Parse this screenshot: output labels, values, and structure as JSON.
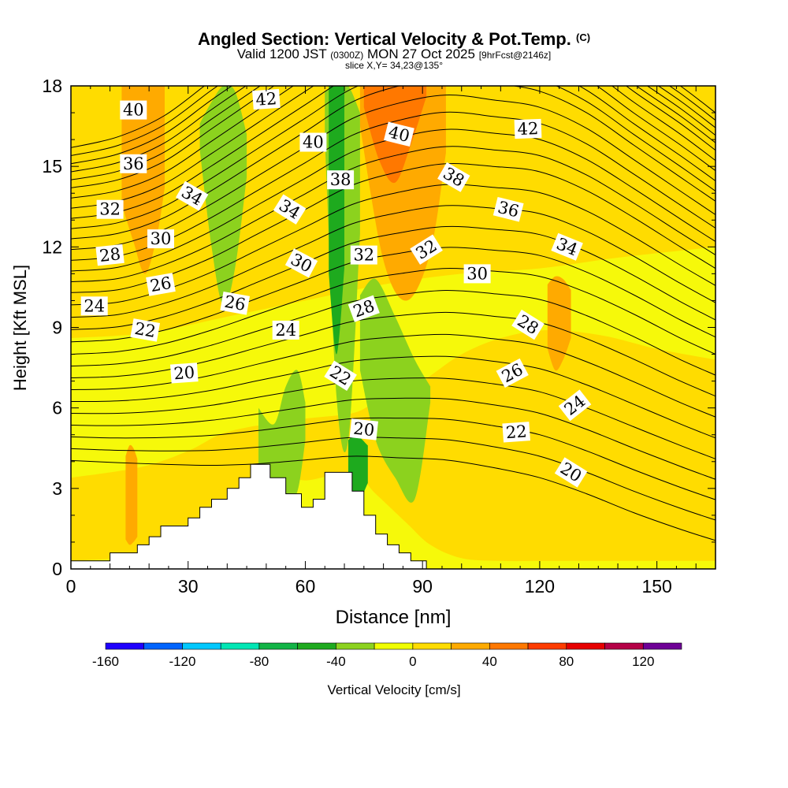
{
  "header": {
    "title": "Angled Section: Vertical Velocity & Pot.Temp.",
    "copyright": "(C)",
    "valid_prefix": "Valid 1200 JST",
    "utc": "(0300Z)",
    "valid_date": "MON 27 Oct 2025",
    "forecast": "[9hrFcst@2146z]",
    "slice": "slice X,Y= 34,23@135°"
  },
  "chart_data": {
    "type": "heatmap",
    "title": "Angled Section: Vertical Velocity & Pot.Temp.",
    "xlabel": "Distance [nm]",
    "ylabel": "Height [Kft MSL]",
    "xlim": [
      0,
      165
    ],
    "ylim": [
      0,
      18
    ],
    "xticks": [
      "0",
      "30",
      "60",
      "90",
      "120",
      "150"
    ],
    "xtick_values": [
      0,
      30,
      60,
      90,
      120,
      150
    ],
    "yticks": [
      "0",
      "3",
      "6",
      "9",
      "12",
      "15",
      "18"
    ],
    "ytick_values": [
      0,
      3,
      6,
      9,
      12,
      15,
      18
    ],
    "colorbar": {
      "label": "Vertical Velocity [cm/s]",
      "range": [
        -160,
        140
      ],
      "step": 20,
      "tick_labels": [
        "-160",
        "-120",
        "-80",
        "-40",
        "0",
        "40",
        "80",
        "120"
      ],
      "tick_values": [
        -160,
        -120,
        -80,
        -40,
        0,
        40,
        80,
        120
      ],
      "colors": [
        "#1e00ff",
        "#0064ff",
        "#00c8ff",
        "#00e6b4",
        "#12b446",
        "#1eaa1e",
        "#8cd21e",
        "#f0ff00",
        "#ffdc00",
        "#ffaa00",
        "#ff7800",
        "#ff3c00",
        "#e60000",
        "#b40046",
        "#6e0096"
      ]
    },
    "background_band": {
      "name": "0 to 20 cm/s",
      "color": "#f6f90a"
    },
    "velocity_regions": [
      {
        "band": "0 to 20",
        "color": "#ffdc00",
        "x": [
          0,
          18,
          30,
          38,
          46,
          52,
          60,
          72,
          78,
          86,
          92,
          100,
          110,
          122,
          136,
          150,
          165
        ],
        "y_bottom": [
          0.3,
          0.5,
          1.2,
          2.4,
          3.2,
          3.6,
          3.3,
          3.6,
          2.8,
          1.7,
          0.9,
          0.4,
          0.3,
          0.3,
          0.3,
          0.3,
          0.3
        ],
        "y_top": [
          3.4,
          3.8,
          4.4,
          5.0,
          5.3,
          5.4,
          5.6,
          5.8,
          6.2,
          6.6,
          7.2,
          8.0,
          8.6,
          8.9,
          8.7,
          8.2,
          7.8
        ]
      },
      {
        "band": "0 to 20",
        "color": "#ffdc00",
        "x": [
          0,
          20,
          40,
          60,
          80,
          100,
          120,
          140,
          165
        ],
        "y_bottom": [
          8.6,
          8.8,
          9.4,
          10.0,
          10.6,
          11.0,
          11.2,
          11.6,
          12.0
        ],
        "y_top": [
          18,
          18,
          18,
          18,
          18,
          18,
          18,
          18,
          18
        ]
      },
      {
        "band": "20 to 40",
        "color": "#ffaa00",
        "x": [
          13,
          16,
          19,
          22,
          24
        ],
        "y_bottom": [
          13.6,
          12.2,
          11.0,
          12.4,
          14.2
        ],
        "y_top": [
          18,
          18,
          18,
          18,
          18
        ]
      },
      {
        "band": "20 to 40",
        "color": "#ffaa00",
        "x": [
          74,
          80,
          86,
          92,
          96
        ],
        "y_bottom": [
          16.5,
          11.5,
          10.0,
          11.8,
          15.5
        ],
        "y_top": [
          18,
          18,
          18,
          18,
          18
        ]
      },
      {
        "band": "40 to 60",
        "color": "#ff7800",
        "x": [
          75,
          79,
          83,
          87,
          91
        ],
        "y_bottom": [
          17.2,
          15.2,
          14.4,
          15.8,
          17.6
        ],
        "y_top": [
          18,
          18,
          18,
          18,
          18
        ]
      },
      {
        "band": "20 to 40",
        "color": "#ffaa00",
        "x": [
          122,
          124,
          126,
          128
        ],
        "y_bottom": [
          8.2,
          7.4,
          7.8,
          8.6
        ],
        "y_top": [
          10.6,
          10.9,
          10.8,
          10.4
        ]
      },
      {
        "band": "20 to 40",
        "color": "#ffaa00",
        "x": [
          14,
          15,
          16,
          17
        ],
        "y_bottom": [
          1.1,
          0.9,
          1.0,
          1.2
        ],
        "y_top": [
          4.2,
          4.6,
          4.5,
          4.1
        ]
      },
      {
        "band": "-40 to -20",
        "color": "#8cd21e",
        "x": [
          33,
          36,
          39,
          42,
          45
        ],
        "y_bottom": [
          15.6,
          12.0,
          9.8,
          11.2,
          14.6
        ],
        "y_top": [
          16.6,
          17.4,
          18,
          17.8,
          16.2
        ]
      },
      {
        "band": "-40 to -20",
        "color": "#8cd21e",
        "x": [
          65,
          68,
          71,
          74
        ],
        "y_bottom": [
          16.0,
          6.4,
          4.8,
          12.5
        ],
        "y_top": [
          17.8,
          18,
          18,
          17.0
        ]
      },
      {
        "band": "-40 to -20",
        "color": "#8cd21e",
        "x": [
          74,
          78,
          83,
          88,
          92
        ],
        "y_bottom": [
          7.4,
          4.8,
          3.4,
          2.6,
          6.2
        ],
        "y_top": [
          10.2,
          10.8,
          9.4,
          7.8,
          6.8
        ]
      },
      {
        "band": "-40 to -20",
        "color": "#8cd21e",
        "x": [
          48,
          52,
          55,
          58,
          60
        ],
        "y_bottom": [
          3.8,
          2.6,
          2.4,
          2.9,
          4.8
        ],
        "y_top": [
          6.0,
          5.4,
          6.8,
          7.4,
          6.2
        ]
      },
      {
        "band": "-60 to -40",
        "color": "#1eaa1e",
        "x": [
          66,
          68,
          70
        ],
        "y_bottom": [
          11.0,
          8.0,
          11.2
        ],
        "y_top": [
          18,
          18,
          18
        ]
      },
      {
        "band": "-60 to -40",
        "color": "#1eaa1e",
        "x": [
          71,
          73,
          76
        ],
        "y_bottom": [
          3.4,
          2.4,
          3.2
        ],
        "y_top": [
          4.8,
          5.0,
          4.6
        ]
      }
    ],
    "terrain": {
      "x": [
        0,
        10,
        10,
        17,
        17,
        20,
        20,
        23,
        23,
        30,
        30,
        33,
        33,
        36,
        36,
        40,
        40,
        43,
        43,
        46,
        46,
        51,
        51,
        55,
        55,
        59,
        59,
        62,
        62,
        65,
        65,
        72,
        72,
        75,
        75,
        78,
        78,
        81,
        81,
        84,
        84,
        87,
        87,
        91,
        91,
        165
      ],
      "y": [
        0.3,
        0.3,
        0.6,
        0.6,
        0.9,
        0.9,
        1.2,
        1.2,
        1.6,
        1.6,
        1.9,
        1.9,
        2.3,
        2.3,
        2.6,
        2.6,
        3.0,
        3.0,
        3.4,
        3.4,
        3.9,
        3.9,
        3.4,
        3.4,
        2.8,
        2.8,
        2.3,
        2.3,
        2.6,
        2.6,
        3.6,
        3.6,
        2.9,
        2.9,
        2.0,
        2.0,
        1.3,
        1.3,
        0.9,
        0.9,
        0.6,
        0.6,
        0.3,
        0.3,
        0.0,
        0.0
      ]
    },
    "contours": {
      "name": "Potential temperature",
      "knots_x": [
        0,
        12,
        24,
        36,
        48,
        60,
        72,
        84,
        96,
        108,
        120,
        132,
        144,
        156,
        165
      ],
      "base": [
        3.6,
        3.5,
        3.4,
        3.3,
        3.3,
        3.4,
        3.5,
        3.4,
        3.3,
        3.0,
        2.6,
        2.0,
        1.3,
        0.7,
        0.3
      ],
      "level_heights": [
        [
          2.2,
          2.3,
          2.5,
          2.8,
          3.1,
          3.3,
          3.5,
          3.7,
          3.8,
          3.9,
          4.0,
          4.0,
          4.0,
          3.9,
          3.8
        ],
        [
          2.2,
          2.3,
          2.5,
          2.8,
          3.1,
          3.4,
          3.7,
          3.9,
          4.1,
          4.2,
          4.3,
          4.3,
          4.2,
          4.0,
          3.9
        ],
        [
          2.3,
          2.3,
          2.5,
          2.7,
          3.0,
          3.3,
          3.6,
          3.8,
          3.9,
          3.9,
          3.9,
          3.8,
          3.6,
          3.4,
          3.2
        ],
        [
          2.0,
          2.1,
          2.2,
          2.5,
          2.7,
          2.9,
          3.1,
          3.2,
          3.2,
          3.1,
          3.0,
          2.9,
          2.7,
          2.6,
          2.5
        ],
        [
          1.9,
          2.0,
          2.1,
          2.3,
          2.4,
          2.5,
          2.5,
          2.5,
          2.4,
          2.3,
          2.2,
          2.1,
          2.0,
          2.0,
          1.9
        ],
        [
          1.5,
          1.6,
          1.7,
          1.8,
          1.8,
          1.8,
          1.7,
          1.6,
          1.5,
          1.4,
          1.4,
          1.4,
          1.4,
          1.4,
          1.4
        ]
      ],
      "levels_per_group": 5,
      "labels": [
        {
          "text": "20",
          "x": 29,
          "y": 7.3,
          "angle": -4
        },
        {
          "text": "20",
          "x": 75,
          "y": 5.2,
          "angle": 6
        },
        {
          "text": "20",
          "x": 128,
          "y": 3.6,
          "angle": 32
        },
        {
          "text": "22",
          "x": 19,
          "y": 8.9,
          "angle": 10
        },
        {
          "text": "22",
          "x": 69,
          "y": 7.2,
          "angle": 32
        },
        {
          "text": "22",
          "x": 114,
          "y": 5.1,
          "angle": -4
        },
        {
          "text": "24",
          "x": 6,
          "y": 9.8,
          "angle": 0
        },
        {
          "text": "24",
          "x": 55,
          "y": 8.9,
          "angle": 0
        },
        {
          "text": "24",
          "x": 129,
          "y": 6.1,
          "angle": -38
        },
        {
          "text": "26",
          "x": 23,
          "y": 10.6,
          "angle": -10
        },
        {
          "text": "26",
          "x": 42,
          "y": 9.9,
          "angle": 10
        },
        {
          "text": "26",
          "x": 113,
          "y": 7.3,
          "angle": -28
        },
        {
          "text": "28",
          "x": 10,
          "y": 11.7,
          "angle": -6
        },
        {
          "text": "28",
          "x": 75,
          "y": 9.7,
          "angle": -20
        },
        {
          "text": "28",
          "x": 117,
          "y": 9.1,
          "angle": 32
        },
        {
          "text": "30",
          "x": 23,
          "y": 12.3,
          "angle": 0
        },
        {
          "text": "30",
          "x": 59,
          "y": 11.4,
          "angle": 28
        },
        {
          "text": "30",
          "x": 104,
          "y": 11.0,
          "angle": 0
        },
        {
          "text": "32",
          "x": 10,
          "y": 13.4,
          "angle": 0
        },
        {
          "text": "32",
          "x": 75,
          "y": 11.7,
          "angle": 0
        },
        {
          "text": "32",
          "x": 91,
          "y": 11.9,
          "angle": -32
        },
        {
          "text": "34",
          "x": 31,
          "y": 13.9,
          "angle": 30
        },
        {
          "text": "34",
          "x": 56,
          "y": 13.4,
          "angle": 32
        },
        {
          "text": "34",
          "x": 127,
          "y": 12.0,
          "angle": 22
        },
        {
          "text": "36",
          "x": 16,
          "y": 15.1,
          "angle": 0
        },
        {
          "text": "36",
          "x": 112,
          "y": 13.4,
          "angle": 14
        },
        {
          "text": "38",
          "x": 69,
          "y": 14.5,
          "angle": 0
        },
        {
          "text": "38",
          "x": 98,
          "y": 14.6,
          "angle": 30
        },
        {
          "text": "40",
          "x": 16,
          "y": 17.1,
          "angle": 0
        },
        {
          "text": "40",
          "x": 62,
          "y": 15.9,
          "angle": 0
        },
        {
          "text": "40",
          "x": 84,
          "y": 16.2,
          "angle": 14
        },
        {
          "text": "42",
          "x": 50,
          "y": 17.5,
          "angle": -4
        },
        {
          "text": "42",
          "x": 117,
          "y": 16.4,
          "angle": -2
        }
      ]
    }
  }
}
